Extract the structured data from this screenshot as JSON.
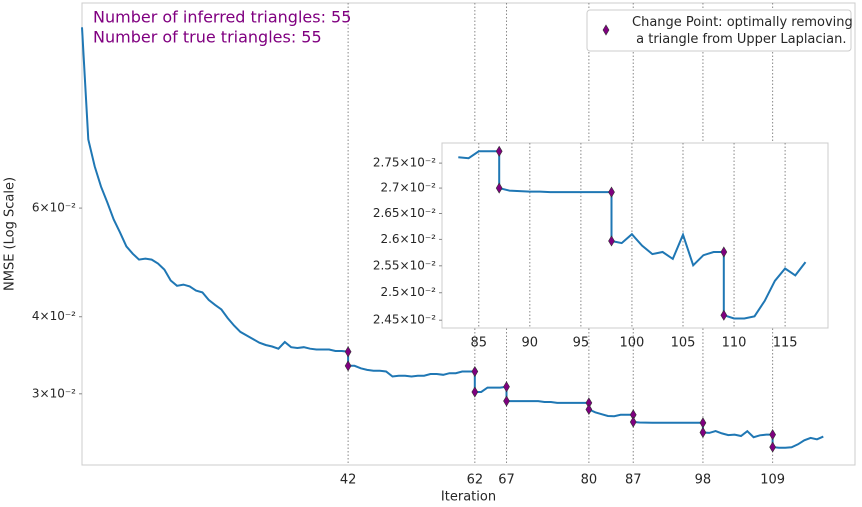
{
  "chart_data": [
    {
      "type": "line",
      "log_y": true,
      "x_grid": true,
      "legend": "upper right",
      "xlabel": "Iteration",
      "ylabel": "NMSE (Log Scale)",
      "annotations": [
        "Number of inferred triangles: 55",
        "Number of true triangles: 55"
      ],
      "annotation_color": "#800080",
      "xlim": [
        0,
        122
      ],
      "ylim": [
        0.023,
        0.129
      ],
      "xticks": [
        42,
        62,
        67,
        80,
        87,
        98,
        109
      ],
      "yticks": [
        {
          "value": 0.03,
          "label": "3×10⁻²"
        },
        {
          "value": 0.04,
          "label": "4×10⁻²"
        },
        {
          "value": 0.06,
          "label": "6×10⁻²"
        }
      ],
      "series": [
        {
          "color": "#1f77b4",
          "x": [
            0,
            1,
            2,
            3,
            4,
            5,
            6,
            7,
            8,
            9,
            10,
            11,
            12,
            13,
            14,
            15,
            16,
            17,
            18,
            19,
            20,
            21,
            22,
            23,
            24,
            25,
            26,
            27,
            28,
            29,
            30,
            31,
            32,
            33,
            34,
            35,
            36,
            37,
            38,
            39,
            40,
            41,
            42,
            42,
            43,
            44,
            45,
            46,
            47,
            48,
            49,
            50,
            51,
            52,
            53,
            54,
            55,
            56,
            57,
            58,
            59,
            60,
            61,
            62,
            62,
            63,
            64,
            65,
            66,
            67,
            67,
            68,
            69,
            70,
            71,
            72,
            73,
            74,
            75,
            76,
            77,
            78,
            79,
            80,
            80,
            81,
            82,
            83,
            84,
            85,
            86,
            87,
            87,
            88,
            89,
            90,
            91,
            92,
            93,
            94,
            95,
            96,
            97,
            98,
            98,
            99,
            100,
            101,
            102,
            103,
            104,
            105,
            106,
            107,
            108,
            109,
            109,
            110,
            111,
            112,
            113,
            114,
            115,
            116,
            117
          ],
          "values": [
            0.1178,
            0.0775,
            0.0701,
            0.065,
            0.0613,
            0.0575,
            0.0548,
            0.052,
            0.0506,
            0.0495,
            0.0497,
            0.0495,
            0.0488,
            0.0477,
            0.0458,
            0.0449,
            0.0451,
            0.0448,
            0.0441,
            0.0438,
            0.0426,
            0.0418,
            0.0411,
            0.0398,
            0.0387,
            0.0378,
            0.0373,
            0.0368,
            0.0363,
            0.036,
            0.0358,
            0.0355,
            0.0364,
            0.0357,
            0.0356,
            0.0357,
            0.0355,
            0.0354,
            0.0354,
            0.0354,
            0.0352,
            0.0352,
            0.0351,
            0.0333,
            0.0333,
            0.033,
            0.0328,
            0.0327,
            0.0327,
            0.0326,
            0.032,
            0.0321,
            0.0321,
            0.032,
            0.0321,
            0.0321,
            0.0323,
            0.0323,
            0.0322,
            0.0324,
            0.0324,
            0.0326,
            0.0326,
            0.0326,
            0.0302,
            0.0302,
            0.0307,
            0.0307,
            0.0307,
            0.0308,
            0.0292,
            0.0292,
            0.0292,
            0.0292,
            0.0292,
            0.0292,
            0.0291,
            0.0291,
            0.029,
            0.029,
            0.029,
            0.029,
            0.029,
            0.029,
            0.0283,
            0.028,
            0.0278,
            0.02762,
            0.0276,
            0.02774,
            0.02774,
            0.02774,
            0.027,
            0.02695,
            0.02694,
            0.02693,
            0.02693,
            0.02692,
            0.02692,
            0.02692,
            0.02692,
            0.02692,
            0.02692,
            0.02692,
            0.02597,
            0.02593,
            0.0261,
            0.02588,
            0.02572,
            0.02576,
            0.02563,
            0.02609,
            0.02551,
            0.0257,
            0.02576,
            0.02576,
            0.02459,
            0.02453,
            0.02453,
            0.02457,
            0.02485,
            0.02522,
            0.02545,
            0.02532,
            0.02557
          ]
        },
        {
          "type": "scatter",
          "name": "Change Point: optimally removing\n a triangle from Upper Laplacian.",
          "color": "#800080",
          "marker": "diamond",
          "x": [
            42,
            42,
            62,
            62,
            67,
            67,
            80,
            80,
            87,
            87,
            98,
            98,
            109,
            109
          ],
          "values": [
            0.0351,
            0.0333,
            0.0326,
            0.0302,
            0.0308,
            0.0292,
            0.029,
            0.0283,
            0.02774,
            0.027,
            0.02692,
            0.02597,
            0.02576,
            0.02459
          ]
        }
      ]
    },
    {
      "type": "line",
      "log_y": true,
      "x_grid": true,
      "xlim": [
        81.4,
        119.2
      ],
      "ylim": [
        0.02436,
        0.02791
      ],
      "xticks": [
        85,
        90,
        95,
        100,
        105,
        110,
        115
      ],
      "yticks": [
        {
          "value": 0.0245,
          "label": "2.45×10⁻²"
        },
        {
          "value": 0.025,
          "label": "2.5×10⁻²"
        },
        {
          "value": 0.0255,
          "label": "2.55×10⁻²"
        },
        {
          "value": 0.026,
          "label": "2.6×10⁻²"
        },
        {
          "value": 0.0265,
          "label": "2.65×10⁻²"
        },
        {
          "value": 0.027,
          "label": "2.7×10⁻²"
        },
        {
          "value": 0.0275,
          "label": "2.75×10⁻²"
        }
      ],
      "series": [
        {
          "color": "#1f77b4",
          "x": [
            83,
            84,
            85,
            86,
            87,
            87,
            88,
            89,
            90,
            91,
            92,
            93,
            94,
            95,
            96,
            97,
            98,
            98,
            99,
            100,
            101,
            102,
            103,
            104,
            105,
            106,
            107,
            108,
            109,
            109,
            110,
            111,
            112,
            113,
            114,
            115,
            116,
            117
          ],
          "values": [
            0.02762,
            0.0276,
            0.02774,
            0.02774,
            0.02774,
            0.027,
            0.02695,
            0.02694,
            0.02693,
            0.02693,
            0.02692,
            0.02692,
            0.02692,
            0.02692,
            0.02692,
            0.02692,
            0.02692,
            0.02597,
            0.02593,
            0.0261,
            0.02588,
            0.02572,
            0.02576,
            0.02563,
            0.02609,
            0.02551,
            0.0257,
            0.02576,
            0.02576,
            0.02459,
            0.02453,
            0.02453,
            0.02457,
            0.02485,
            0.02522,
            0.02545,
            0.02532,
            0.02557
          ]
        },
        {
          "type": "scatter",
          "color": "#800080",
          "marker": "diamond",
          "x": [
            87,
            87,
            98,
            98,
            109,
            109
          ],
          "values": [
            0.02774,
            0.027,
            0.02692,
            0.02597,
            0.02576,
            0.02459
          ]
        }
      ]
    }
  ]
}
